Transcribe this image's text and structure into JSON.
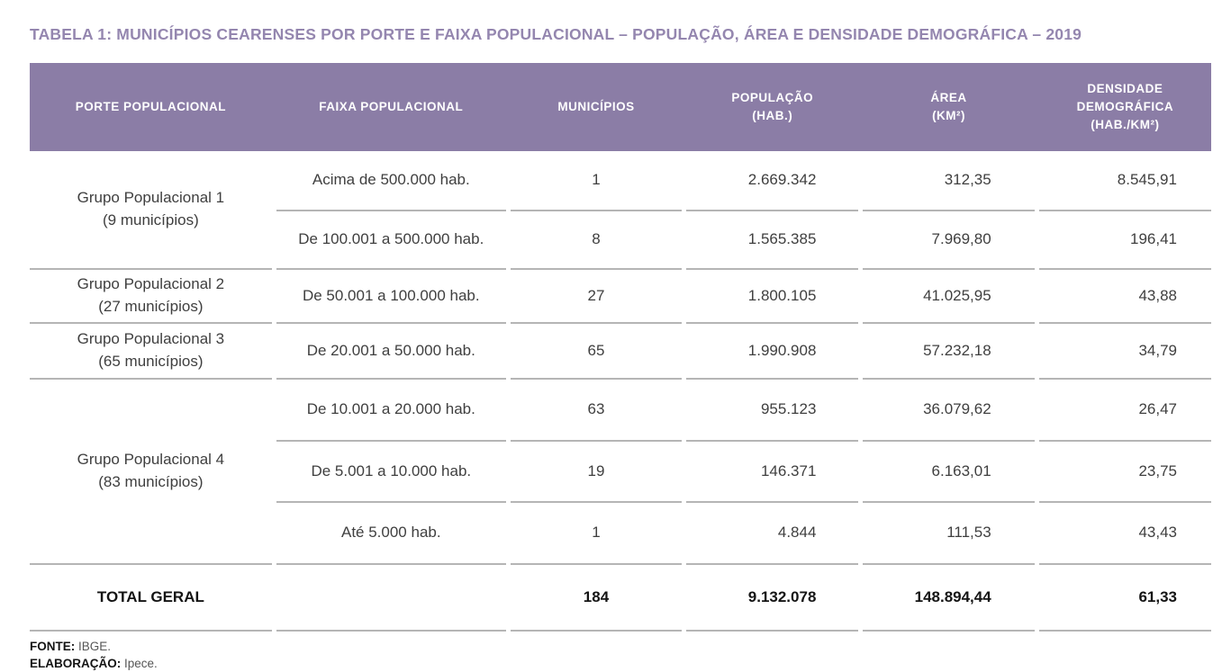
{
  "title": "TABELA 1: MUNICÍPIOS CEARENSES POR PORTE E FAIXA POPULACIONAL – POPULAÇÃO, ÁREA E DENSIDADE DEMOGRÁFICA – 2019",
  "colors": {
    "header_bg": "#8b7da6",
    "title_text": "#9486af",
    "divider": "#b5b5b5",
    "header_text": "#ffffff",
    "body_text": "#3f3f3f"
  },
  "table": {
    "headers": [
      {
        "l1": "PORTE POPULACIONAL",
        "l2": "",
        "l3": ""
      },
      {
        "l1": "FAIXA POPULACIONAL",
        "l2": "",
        "l3": ""
      },
      {
        "l1": "MUNICÍPIOS",
        "l2": "",
        "l3": ""
      },
      {
        "l1": "POPULAÇÃO",
        "l2": "(HAB.)",
        "l3": ""
      },
      {
        "l1": "ÁREA",
        "l2": "(KM²)",
        "l3": ""
      },
      {
        "l1": "DENSIDADE",
        "l2": "DEMOGRÁFICA",
        "l3": "(HAB./KM²)"
      }
    ],
    "groups": [
      {
        "label": "Grupo Populacional 1",
        "sublabel": "(9 municípios)",
        "rows": [
          {
            "faixa": "Acima de 500.000 hab.",
            "municipios": "1",
            "populacao": "2.669.342",
            "area": "312,35",
            "densidade": "8.545,91"
          },
          {
            "faixa": "De 100.001 a 500.000 hab.",
            "municipios": "8",
            "populacao": "1.565.385",
            "area": "7.969,80",
            "densidade": "196,41"
          }
        ]
      },
      {
        "label": "Grupo Populacional 2",
        "sublabel": "(27 municípios)",
        "rows": [
          {
            "faixa": "De 50.001 a 100.000 hab.",
            "municipios": "27",
            "populacao": "1.800.105",
            "area": "41.025,95",
            "densidade": "43,88"
          }
        ]
      },
      {
        "label": "Grupo Populacional 3",
        "sublabel": "(65 municípios)",
        "rows": [
          {
            "faixa": "De 20.001 a 50.000 hab.",
            "municipios": "65",
            "populacao": "1.990.908",
            "area": "57.232,18",
            "densidade": "34,79"
          }
        ]
      },
      {
        "label": "Grupo Populacional 4",
        "sublabel": "(83 municípios)",
        "rows": [
          {
            "faixa": "De 10.001 a 20.000 hab.",
            "municipios": "63",
            "populacao": "955.123",
            "area": "36.079,62",
            "densidade": "26,47"
          },
          {
            "faixa": "De 5.001 a 10.000 hab.",
            "municipios": "19",
            "populacao": "146.371",
            "area": "6.163,01",
            "densidade": "23,75"
          },
          {
            "faixa": "Até 5.000 hab.",
            "municipios": "1",
            "populacao": "4.844",
            "area": "111,53",
            "densidade": "43,43"
          }
        ]
      }
    ],
    "total": {
      "label": "TOTAL GERAL",
      "municipios": "184",
      "populacao": "9.132.078",
      "area": "148.894,44",
      "densidade": "61,33"
    }
  },
  "footer": {
    "fonte_label": "FONTE:",
    "fonte_value": "IBGE.",
    "elaboracao_label": "ELABORAÇÃO:",
    "elaboracao_value": "Ipece."
  }
}
